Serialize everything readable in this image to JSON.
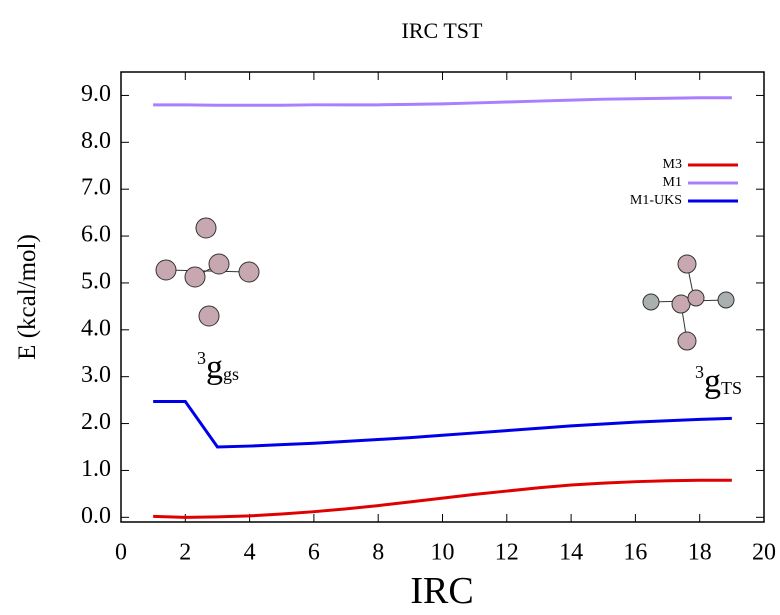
{
  "chart_data": {
    "type": "line",
    "title": "IRC TST",
    "xlabel": "IRC",
    "ylabel": "E (kcal/mol)",
    "x": [
      1,
      2,
      3,
      4,
      5,
      6,
      7,
      8,
      9,
      10,
      11,
      12,
      13,
      14,
      15,
      16,
      17,
      18,
      19
    ],
    "series": [
      {
        "name": "M3",
        "color": "#e00000",
        "values": [
          0.02,
          0.0,
          0.01,
          0.03,
          0.07,
          0.12,
          0.18,
          0.25,
          0.33,
          0.41,
          0.49,
          0.56,
          0.63,
          0.69,
          0.73,
          0.76,
          0.78,
          0.79,
          0.79
        ]
      },
      {
        "name": "M1",
        "color": "#a97fff",
        "values": [
          8.8,
          8.8,
          8.79,
          8.79,
          8.79,
          8.8,
          8.8,
          8.8,
          8.81,
          8.82,
          8.84,
          8.86,
          8.88,
          8.9,
          8.92,
          8.93,
          8.94,
          8.95,
          8.95
        ]
      },
      {
        "name": "M1-UKS",
        "color": "#0000e8",
        "values": [
          2.47,
          2.47,
          1.5,
          1.52,
          1.55,
          1.58,
          1.62,
          1.66,
          1.7,
          1.75,
          1.8,
          1.85,
          1.9,
          1.95,
          1.99,
          2.03,
          2.06,
          2.09,
          2.11
        ]
      }
    ],
    "xlim": [
      0,
      20
    ],
    "xticks": [
      0,
      2,
      4,
      6,
      8,
      10,
      12,
      14,
      16,
      18,
      20
    ],
    "ylim": [
      -0.1,
      9.5
    ],
    "yticks": [
      {
        "value": 0,
        "label": "0.0"
      },
      {
        "value": 1,
        "label": "1.0"
      },
      {
        "value": 2,
        "label": "2.0"
      },
      {
        "value": 3,
        "label": "3.0"
      },
      {
        "value": 4,
        "label": "4.0"
      },
      {
        "value": 5,
        "label": "5.0"
      },
      {
        "value": 6,
        "label": "6.0"
      },
      {
        "value": 7,
        "label": "7.0"
      },
      {
        "value": 8,
        "label": "8.0"
      },
      {
        "value": 9,
        "label": "9.0"
      }
    ],
    "legend": "top-right",
    "annotations": [
      {
        "sup": "3",
        "base": "g",
        "sub": "gs"
      },
      {
        "sup": "3",
        "base": "g",
        "sub": "TS"
      }
    ]
  }
}
